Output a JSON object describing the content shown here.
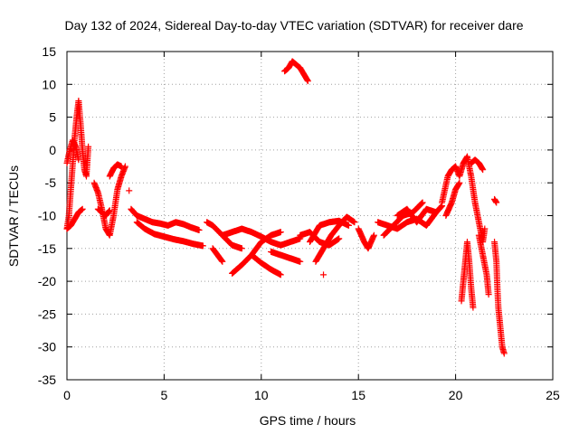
{
  "chart_data": {
    "type": "scatter",
    "title": "Day 132 of 2024, Sidereal Day-to-day VTEC variation (SDTVAR) for receiver dare",
    "xlabel": "GPS time / hours",
    "ylabel": "SDTVAR / TECUs",
    "xlim": [
      0,
      25
    ],
    "ylim": [
      -35,
      15
    ],
    "xticks": [
      0,
      5,
      10,
      15,
      20,
      25
    ],
    "yticks": [
      -35,
      -30,
      -25,
      -20,
      -15,
      -10,
      -5,
      0,
      5,
      10,
      15
    ],
    "grid": true,
    "marker": "+",
    "color": "#ff0000",
    "series": [
      {
        "name": "SDTVAR",
        "segments": [
          [
            [
              0.0,
              -12
            ],
            [
              0.1,
              -10
            ],
            [
              0.2,
              -6
            ],
            [
              0.3,
              -2
            ],
            [
              0.4,
              2
            ],
            [
              0.5,
              5
            ],
            [
              0.6,
              7.5
            ],
            [
              0.7,
              4
            ],
            [
              0.8,
              0
            ],
            [
              0.9,
              -3
            ],
            [
              1.0,
              -4
            ],
            [
              1.1,
              0.5
            ]
          ],
          [
            [
              0.0,
              -2
            ],
            [
              0.15,
              0
            ],
            [
              0.3,
              1.5
            ],
            [
              0.45,
              0.5
            ],
            [
              0.6,
              -1.5
            ]
          ],
          [
            [
              0.0,
              -12
            ],
            [
              0.2,
              -11.5
            ],
            [
              0.4,
              -10.5
            ],
            [
              0.6,
              -9.5
            ],
            [
              0.8,
              -9
            ]
          ],
          [
            [
              1.4,
              -5
            ],
            [
              1.6,
              -6.5
            ],
            [
              1.8,
              -9
            ],
            [
              2.0,
              -12
            ],
            [
              2.2,
              -13
            ],
            [
              2.4,
              -10
            ],
            [
              2.6,
              -6
            ],
            [
              2.8,
              -4
            ],
            [
              3.0,
              -2.5
            ]
          ],
          [
            [
              1.6,
              -9
            ],
            [
              1.8,
              -9.5
            ],
            [
              2.0,
              -10
            ],
            [
              2.2,
              -9.2
            ]
          ],
          [
            [
              2.2,
              -4
            ],
            [
              2.4,
              -2.8
            ],
            [
              2.6,
              -2.2
            ],
            [
              2.8,
              -2.5
            ]
          ],
          [
            [
              3.2,
              -6.2
            ]
          ],
          [
            [
              3.3,
              -9
            ],
            [
              3.6,
              -10
            ],
            [
              4.0,
              -10.5
            ],
            [
              4.4,
              -11
            ],
            [
              4.8,
              -11.2
            ],
            [
              5.2,
              -11.5
            ],
            [
              5.6,
              -11
            ],
            [
              6.0,
              -11.3
            ],
            [
              6.4,
              -11.8
            ],
            [
              6.8,
              -12.2
            ]
          ],
          [
            [
              3.6,
              -11
            ],
            [
              4.0,
              -12
            ],
            [
              4.5,
              -12.8
            ],
            [
              5.0,
              -13.2
            ],
            [
              5.5,
              -13.6
            ],
            [
              6.0,
              -13.9
            ],
            [
              6.5,
              -14.3
            ],
            [
              7.0,
              -14.6
            ]
          ],
          [
            [
              7.2,
              -11
            ],
            [
              7.5,
              -11.5
            ],
            [
              8.0,
              -13
            ],
            [
              8.5,
              -14.5
            ],
            [
              9.0,
              -15
            ]
          ],
          [
            [
              7.5,
              -15
            ],
            [
              7.8,
              -16.2
            ],
            [
              8.0,
              -17
            ]
          ],
          [
            [
              8.0,
              -13
            ],
            [
              8.5,
              -12.5
            ],
            [
              9.0,
              -12
            ],
            [
              9.5,
              -12.5
            ],
            [
              10.0,
              -13.2
            ],
            [
              10.5,
              -14
            ],
            [
              11.0,
              -14.5
            ],
            [
              11.5,
              -14
            ],
            [
              12.0,
              -13.5
            ]
          ],
          [
            [
              8.5,
              -18.8
            ],
            [
              9.0,
              -17.5
            ],
            [
              9.5,
              -16
            ],
            [
              10.0,
              -14
            ],
            [
              10.5,
              -13
            ],
            [
              11.0,
              -12.5
            ]
          ],
          [
            [
              9.5,
              -16
            ],
            [
              10.0,
              -17.2
            ],
            [
              10.5,
              -18.2
            ],
            [
              11.0,
              -19
            ]
          ],
          [
            [
              10.5,
              -15.5
            ],
            [
              11.0,
              -16
            ],
            [
              11.5,
              -16.5
            ],
            [
              12.0,
              -17
            ]
          ],
          [
            [
              11.2,
              12
            ],
            [
              11.4,
              12.5
            ],
            [
              11.6,
              13.5
            ],
            [
              11.8,
              13
            ],
            [
              12.0,
              12.5
            ],
            [
              12.2,
              11.5
            ],
            [
              12.4,
              10.5
            ]
          ],
          [
            [
              12.0,
              -13
            ],
            [
              12.5,
              -12.5
            ],
            [
              13.0,
              -14
            ],
            [
              13.5,
              -14.5
            ],
            [
              14.0,
              -13.5
            ]
          ],
          [
            [
              12.5,
              -14
            ],
            [
              13.0,
              -11.5
            ],
            [
              13.5,
              -11
            ],
            [
              14.0,
              -10.8
            ],
            [
              14.5,
              -11.5
            ]
          ],
          [
            [
              12.8,
              -17
            ],
            [
              13.2,
              -15
            ],
            [
              13.6,
              -13
            ],
            [
              14.0,
              -11.5
            ],
            [
              14.4,
              -10.2
            ],
            [
              14.8,
              -11
            ]
          ],
          [
            [
              13.2,
              -19
            ]
          ],
          [
            [
              15.0,
              -12
            ],
            [
              15.3,
              -14
            ],
            [
              15.5,
              -15
            ],
            [
              15.8,
              -13
            ]
          ],
          [
            [
              16.0,
              -11
            ],
            [
              16.5,
              -11.5
            ],
            [
              17.0,
              -12
            ],
            [
              17.5,
              -11
            ],
            [
              18.0,
              -10.5
            ],
            [
              18.5,
              -11.5
            ],
            [
              19.0,
              -9.5
            ],
            [
              19.3,
              -8.5
            ]
          ],
          [
            [
              16.3,
              -13
            ],
            [
              16.8,
              -11.5
            ],
            [
              17.3,
              -10
            ],
            [
              17.8,
              -9.5
            ],
            [
              18.3,
              -8
            ]
          ],
          [
            [
              17.0,
              -10
            ],
            [
              17.5,
              -9
            ],
            [
              18.0,
              -11
            ],
            [
              18.5,
              -9
            ],
            [
              19.0,
              -9.5
            ]
          ],
          [
            [
              19.3,
              -8
            ],
            [
              19.6,
              -4
            ],
            [
              19.8,
              -3
            ],
            [
              20.0,
              -2.5
            ],
            [
              20.2,
              -4
            ],
            [
              20.4,
              -2
            ],
            [
              20.6,
              -1
            ],
            [
              20.8,
              -4
            ],
            [
              21.0,
              -8
            ],
            [
              21.2,
              -11
            ],
            [
              21.4,
              -14
            ],
            [
              21.5,
              -12
            ]
          ],
          [
            [
              19.5,
              -10
            ],
            [
              19.8,
              -8
            ],
            [
              20.0,
              -6
            ],
            [
              20.2,
              -5
            ]
          ],
          [
            [
              20.8,
              -2
            ],
            [
              21.0,
              -1.5
            ],
            [
              21.2,
              -2
            ],
            [
              21.3,
              -2.5
            ],
            [
              21.4,
              -3
            ]
          ],
          [
            [
              20.3,
              -23
            ],
            [
              20.4,
              -20
            ],
            [
              20.5,
              -17
            ],
            [
              20.6,
              -14
            ],
            [
              20.7,
              -17
            ],
            [
              20.8,
              -21
            ],
            [
              20.9,
              -24
            ]
          ],
          [
            [
              21.2,
              -13
            ],
            [
              21.4,
              -16
            ],
            [
              21.6,
              -19
            ],
            [
              21.7,
              -22
            ]
          ],
          [
            [
              22.0,
              -7.5
            ],
            [
              22.1,
              -8
            ]
          ],
          [
            [
              22.0,
              -14
            ],
            [
              22.1,
              -17
            ],
            [
              22.15,
              -21
            ],
            [
              22.2,
              -24
            ],
            [
              22.3,
              -27
            ],
            [
              22.4,
              -30
            ],
            [
              22.5,
              -31
            ]
          ]
        ]
      }
    ]
  }
}
